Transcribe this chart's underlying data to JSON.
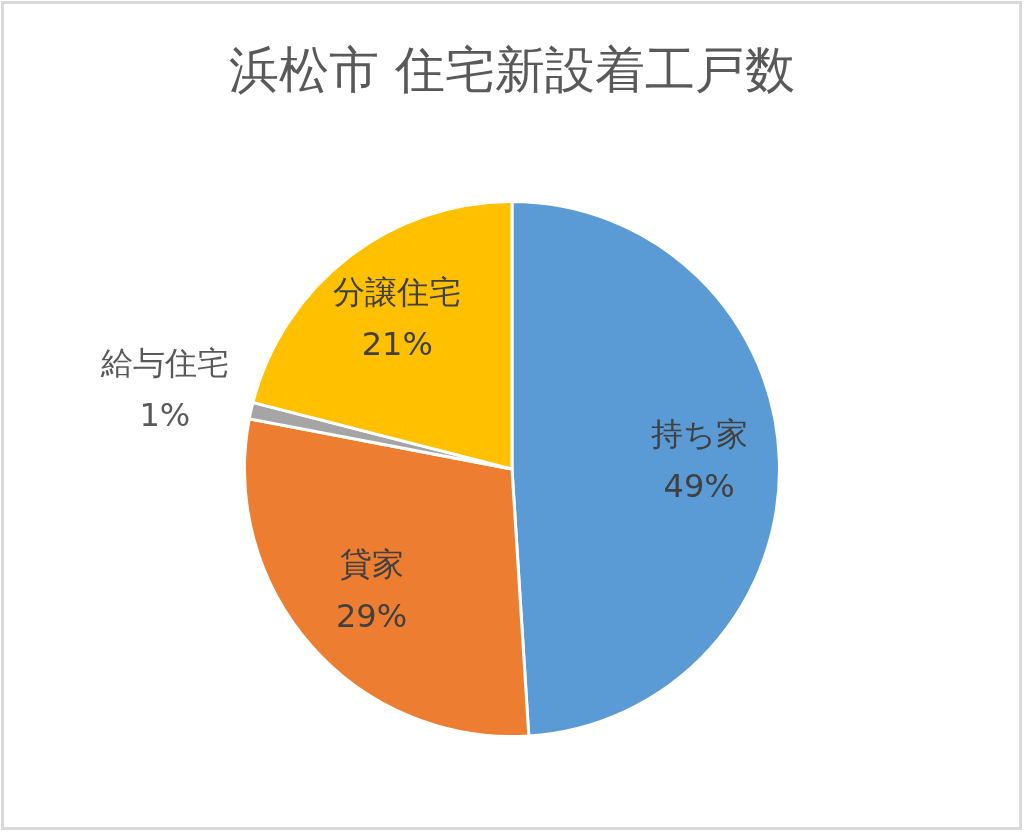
{
  "chart_data": {
    "type": "pie",
    "title": "浜松市 住宅新設着工戸数",
    "categories": [
      "持ち家",
      "貸家",
      "給与住宅",
      "分譲住宅"
    ],
    "values": [
      49,
      29,
      1,
      21
    ],
    "value_labels": [
      "49%",
      "29%",
      "1%",
      "21%"
    ],
    "colors": [
      "#5b9bd5",
      "#ed7d31",
      "#a5a5a5",
      "#ffc000"
    ]
  }
}
